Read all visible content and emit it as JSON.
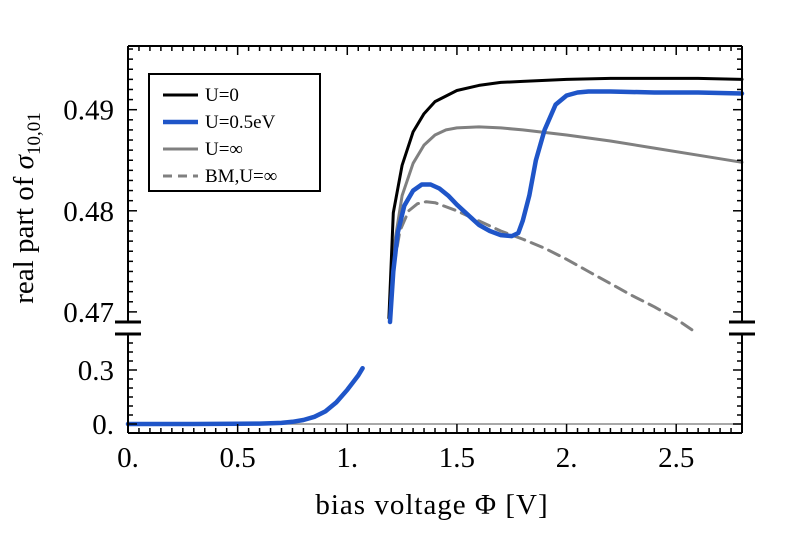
{
  "chart_data": {
    "type": "line",
    "title": "",
    "xlabel": "bias voltage Φ [V]",
    "ylabel_prefix": "real part of ",
    "ylabel_symbol": "σ",
    "ylabel_subscript": "10,01",
    "xlim": [
      0,
      2.8
    ],
    "ylim_upper": [
      0.469,
      0.4963
    ],
    "ylim_lower": [
      -0.05,
      0.5
    ],
    "broken_axis": true,
    "x_ticks": [
      0,
      0.5,
      1,
      1.5,
      2,
      2.5
    ],
    "x_tick_labels": [
      "0.",
      "0.5",
      "1.",
      "1.5",
      "2.",
      "2.5"
    ],
    "y_ticks_upper": [
      0.47,
      0.48,
      0.49
    ],
    "y_tick_labels_upper": [
      "0.47",
      "0.48",
      "0.49"
    ],
    "y_ticks_lower": [
      0,
      0.3
    ],
    "y_tick_labels_lower": [
      "0.",
      "0.3"
    ],
    "grid": false,
    "legend_position": "top-left",
    "baseline": {
      "name": "zero line",
      "y": 0,
      "color": "#8c8c8c"
    },
    "series": [
      {
        "name": "U=0",
        "color": "#000000",
        "dash": "solid",
        "lower": {
          "x": [],
          "y": []
        },
        "upper": {
          "x": [
            1.19,
            1.21,
            1.25,
            1.3,
            1.35,
            1.4,
            1.5,
            1.6,
            1.7,
            1.8,
            2.0,
            2.2,
            2.4,
            2.6,
            2.8
          ],
          "y": [
            0.4694,
            0.4798,
            0.4845,
            0.4878,
            0.4896,
            0.4908,
            0.4919,
            0.4924,
            0.4927,
            0.4928,
            0.493,
            0.4931,
            0.4931,
            0.4931,
            0.493
          ]
        }
      },
      {
        "name": "U=0.5eV",
        "color": "#1f55c8",
        "dash": "solid",
        "lower": {
          "x": [
            0,
            0.3,
            0.5,
            0.6,
            0.7,
            0.75,
            0.8,
            0.85,
            0.9,
            0.95,
            1.0,
            1.05,
            1.07
          ],
          "y": [
            0.0,
            0.0,
            0.001,
            0.002,
            0.006,
            0.012,
            0.022,
            0.04,
            0.07,
            0.12,
            0.19,
            0.27,
            0.31
          ]
        },
        "upper": {
          "x": [
            1.195,
            1.21,
            1.23,
            1.26,
            1.3,
            1.34,
            1.38,
            1.42,
            1.46,
            1.5,
            1.55,
            1.6,
            1.65,
            1.7,
            1.75,
            1.78,
            1.8,
            1.83,
            1.86,
            1.9,
            1.95,
            2.0,
            2.05,
            2.1,
            2.2,
            2.4,
            2.6,
            2.8
          ],
          "y": [
            0.469,
            0.474,
            0.4778,
            0.4805,
            0.482,
            0.4826,
            0.4826,
            0.4822,
            0.4815,
            0.4806,
            0.4796,
            0.4786,
            0.478,
            0.4776,
            0.4775,
            0.4778,
            0.479,
            0.4815,
            0.485,
            0.488,
            0.4905,
            0.4914,
            0.4917,
            0.4918,
            0.4918,
            0.4917,
            0.4917,
            0.4916
          ]
        }
      },
      {
        "name": "U=∞",
        "color": "#808080",
        "dash": "solid",
        "lower": {
          "x": [],
          "y": []
        },
        "upper": {
          "x": [
            1.195,
            1.21,
            1.25,
            1.3,
            1.35,
            1.4,
            1.45,
            1.5,
            1.6,
            1.7,
            1.8,
            2.0,
            2.2,
            2.4,
            2.6,
            2.8
          ],
          "y": [
            0.4695,
            0.476,
            0.4815,
            0.4847,
            0.4865,
            0.4875,
            0.488,
            0.4882,
            0.4883,
            0.4882,
            0.488,
            0.4875,
            0.4869,
            0.4862,
            0.4855,
            0.4848
          ]
        }
      },
      {
        "name": "BM,U=∞",
        "color": "#808080",
        "dash": "dashed",
        "lower": {
          "x": [],
          "y": []
        },
        "upper": {
          "x": [
            1.195,
            1.21,
            1.24,
            1.28,
            1.32,
            1.36,
            1.4,
            1.5,
            1.6,
            1.7,
            1.8,
            1.9,
            2.0,
            2.1,
            2.2,
            2.3,
            2.4,
            2.5,
            2.58
          ],
          "y": [
            0.469,
            0.4742,
            0.478,
            0.48,
            0.4807,
            0.4809,
            0.4808,
            0.48,
            0.479,
            0.478,
            0.4772,
            0.4763,
            0.4752,
            0.474,
            0.4728,
            0.4716,
            0.4705,
            0.4693,
            0.4681
          ]
        }
      }
    ]
  }
}
